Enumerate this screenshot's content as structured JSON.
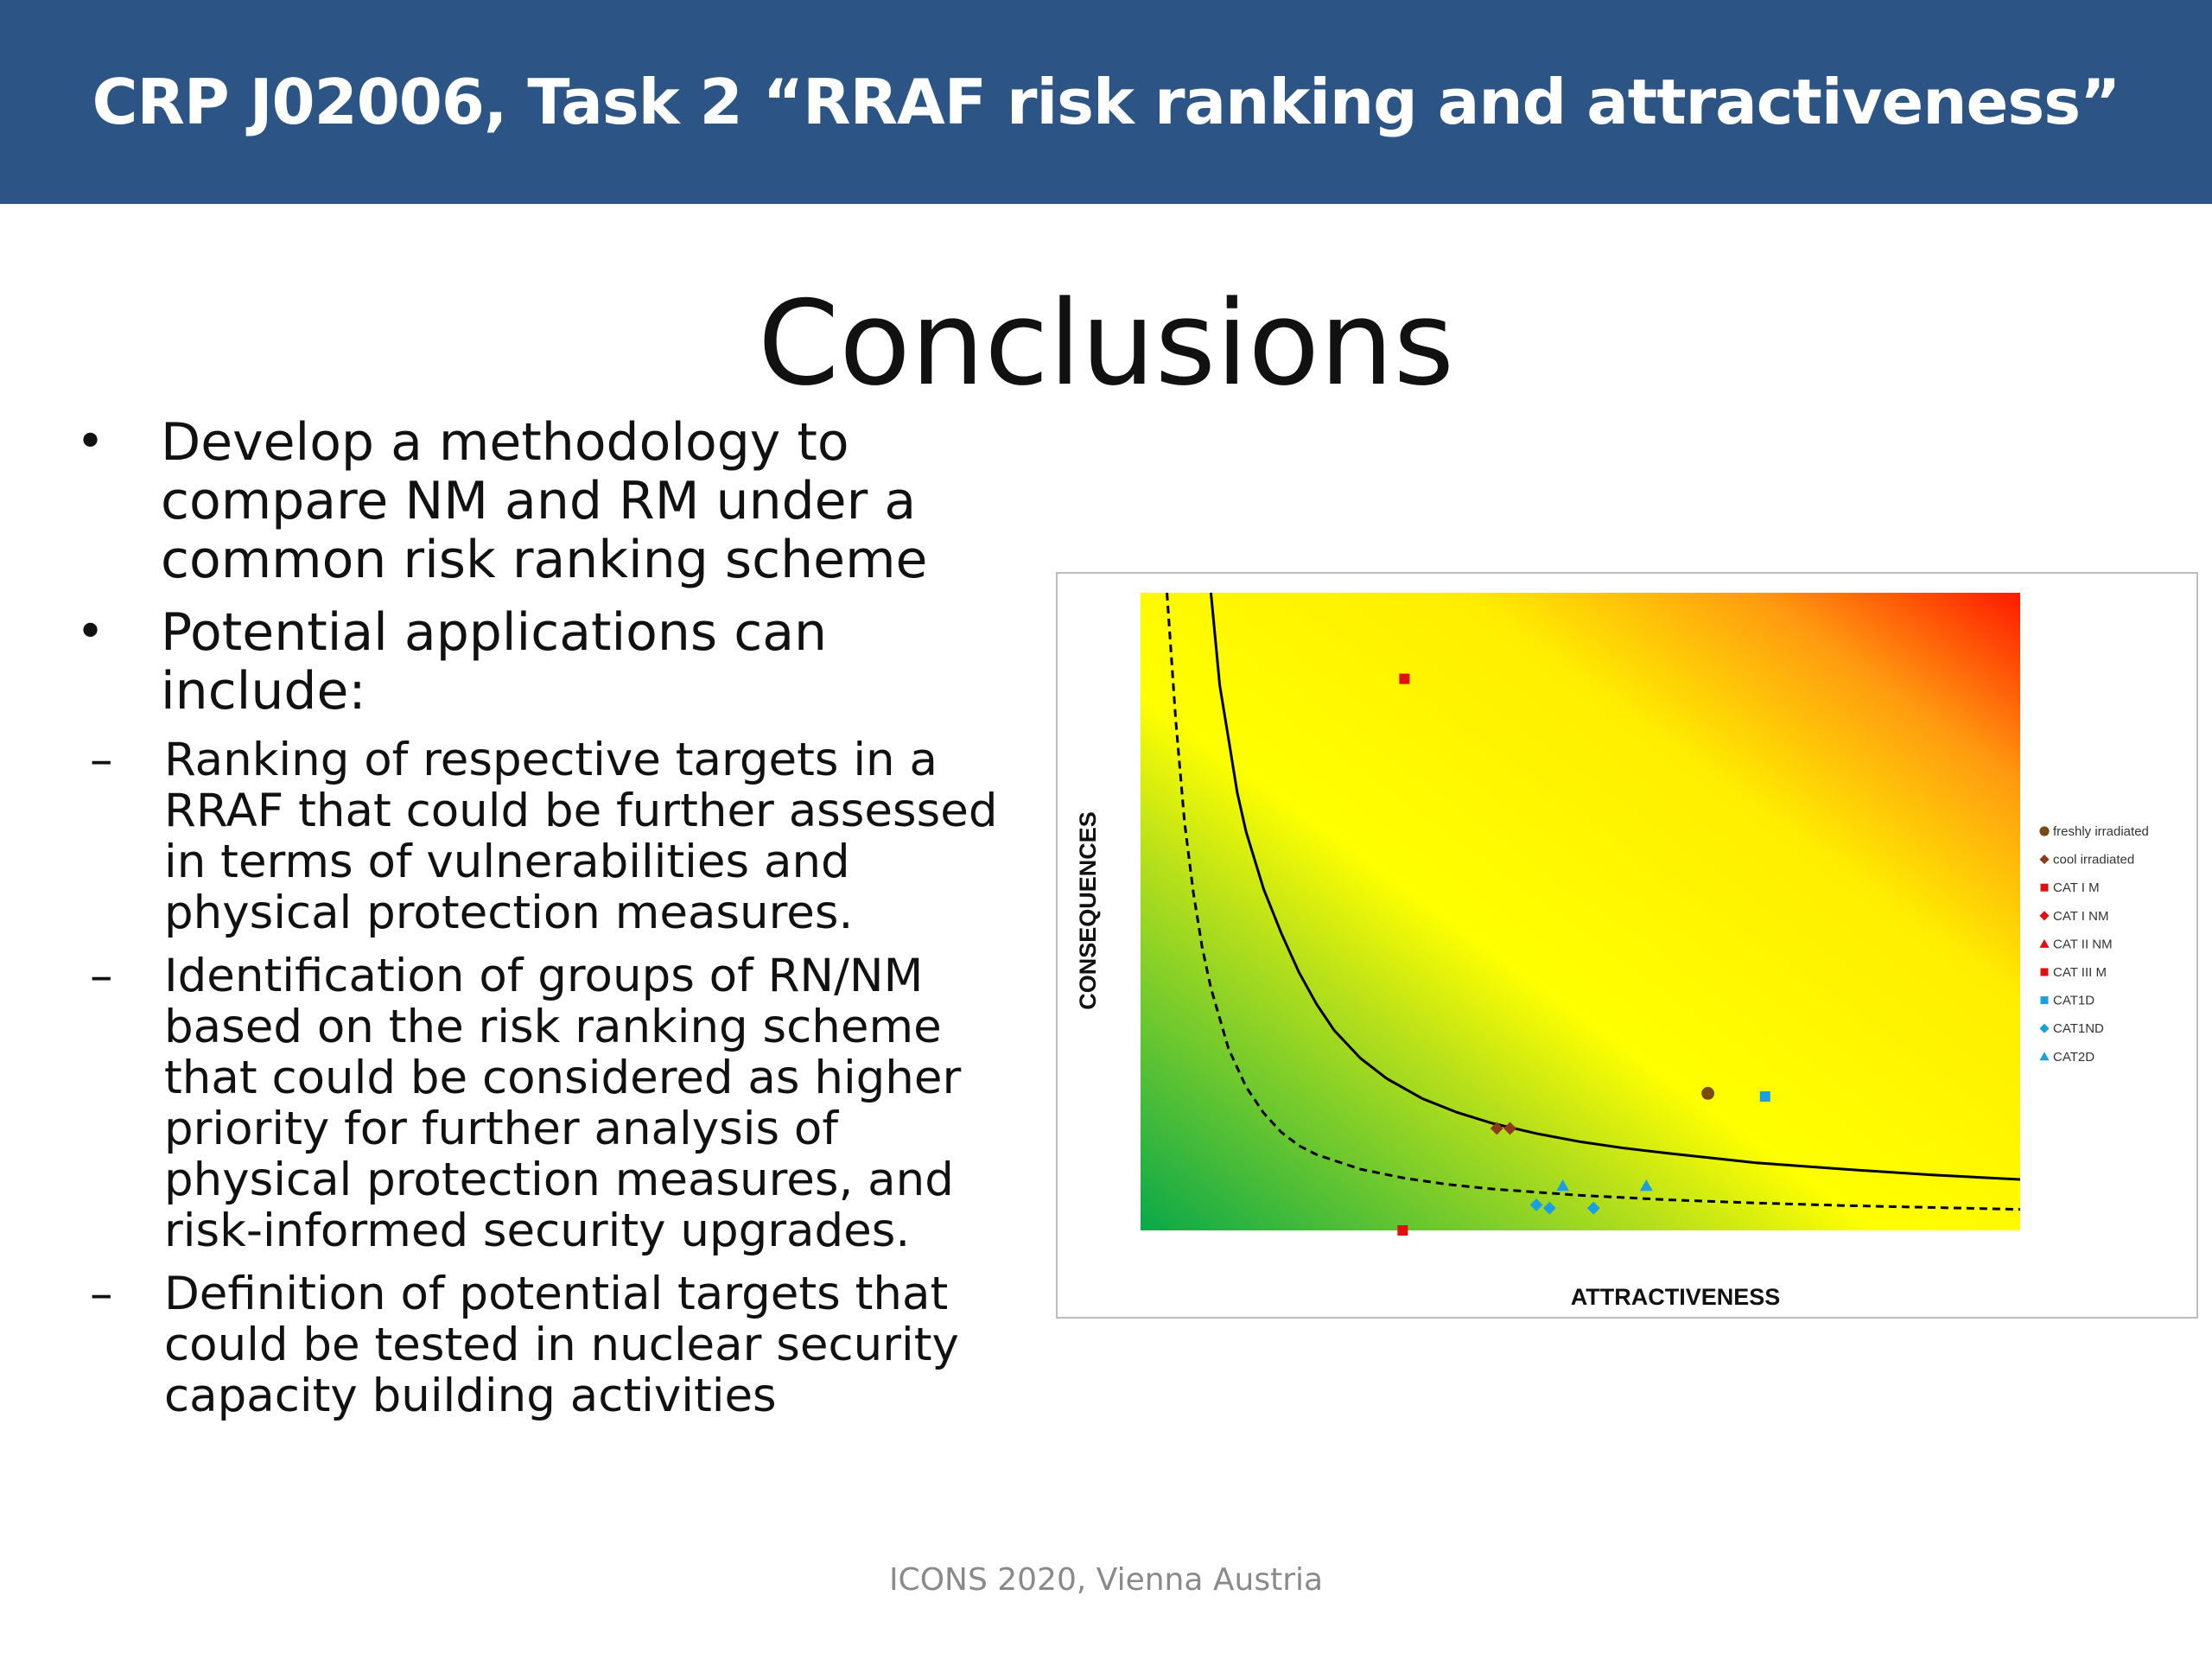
{
  "header": {
    "title": "CRP J02006, Task 2 “RRAF risk ranking and attractiveness”"
  },
  "slide": {
    "title": "Conclusions"
  },
  "bullets": [
    {
      "text": "Develop a methodology to compare NM and RM under a common risk ranking scheme",
      "sub": []
    },
    {
      "text": "Potential applications can include:",
      "sub": [
        "Ranking of respective targets in a RRAF that could be further assessed in terms of vulnerabilities and physical protection measures.",
        "Identification of groups of RN/NM based on the risk ranking scheme that could be considered as higher priority for further analysis of physical protection measures, and risk-informed security upgrades.",
        "Definition of potential targets that could be tested in nuclear security capacity building activities"
      ]
    }
  ],
  "chart_data": {
    "type": "scatter",
    "xlabel": "ATTRACTIVENESS",
    "ylabel": "CONSEQUENCES",
    "xlim": [
      0,
      100
    ],
    "ylim": [
      0,
      100
    ],
    "grid": false,
    "legend_position": "right",
    "background": "gradient green (bottom-left) to yellow to red (top-right)",
    "series": [
      {
        "name": "freshly irradiated",
        "marker": "circle",
        "color": "#7b4a12",
        "points": [
          [
            64.5,
            21.5
          ]
        ]
      },
      {
        "name": "cool irradiated",
        "marker": "diamond",
        "color": "#8b3a1a",
        "points": [
          [
            40.5,
            16.0
          ],
          [
            42.0,
            16.0
          ]
        ]
      },
      {
        "name": "CAT I M",
        "marker": "square",
        "color": "#e01010",
        "points": [
          [
            30.0,
            86.5
          ]
        ]
      },
      {
        "name": "CAT I NM",
        "marker": "diamond",
        "color": "#e01010",
        "points": []
      },
      {
        "name": "CAT II NM",
        "marker": "triangle",
        "color": "#e01010",
        "points": []
      },
      {
        "name": "CAT III M",
        "marker": "square",
        "color": "#e01010",
        "points": [
          [
            29.8,
            0.0
          ]
        ]
      },
      {
        "name": "CAT1D",
        "marker": "square",
        "color": "#1aa0e0",
        "points": [
          [
            71.0,
            21.0
          ]
        ]
      },
      {
        "name": "CAT1ND",
        "marker": "diamond",
        "color": "#1aa0e0",
        "points": [
          [
            45.0,
            4.0
          ],
          [
            46.5,
            3.5
          ],
          [
            51.5,
            3.5
          ]
        ]
      },
      {
        "name": "CAT2D",
        "marker": "triangle",
        "color": "#1aa0e0",
        "points": [
          [
            48.0,
            7.0
          ],
          [
            57.5,
            7.0
          ]
        ]
      }
    ],
    "curves": [
      {
        "style": "solid",
        "color": "#000000",
        "x": [
          8,
          9,
          10,
          11,
          12,
          14,
          16,
          18,
          20,
          22,
          25,
          28,
          32,
          36,
          40,
          45,
          50,
          55,
          60,
          70,
          80,
          90,
          100
        ],
        "y": [
          100,
          85.5,
          77.1,
          68.6,
          62.5,
          53.5,
          46.6,
          40.5,
          35.5,
          31.4,
          27.0,
          23.8,
          20.7,
          18.5,
          16.8,
          15.2,
          13.9,
          12.9,
          12.1,
          10.6,
          9.6,
          8.7,
          8.0
        ]
      },
      {
        "style": "dashed",
        "color": "#000000",
        "x": [
          3,
          4,
          5,
          6,
          7,
          8,
          10,
          12,
          14,
          16,
          18,
          20,
          25,
          30,
          35,
          40,
          50,
          60,
          70,
          80,
          90,
          100
        ],
        "y": [
          100,
          80,
          64,
          53,
          44.4,
          38,
          28.5,
          22.5,
          18.4,
          15.4,
          13.3,
          11.9,
          9.6,
          8.2,
          7.2,
          6.5,
          5.5,
          4.8,
          4.3,
          3.9,
          3.6,
          3.3
        ]
      }
    ]
  },
  "footer": {
    "text": "ICONS 2020, Vienna Austria"
  }
}
